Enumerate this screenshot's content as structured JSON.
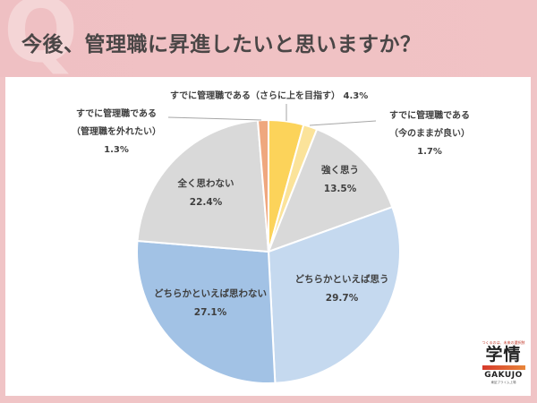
{
  "header": {
    "watermark": "Q",
    "title": "今後、管理職に昇進したいと思いますか？",
    "background_color": "#f0c4c6"
  },
  "chart_data": {
    "type": "pie",
    "title": "今後、管理職に昇進したいと思いますか？",
    "start_angle_deg": 0,
    "direction": "clockwise",
    "center": [
      300,
      281
    ],
    "radius": 147,
    "slices": [
      {
        "label": "すでに管理職である（さらに上を目指す）",
        "value": 4.3,
        "display": "4.3%",
        "color": "#fcd35a"
      },
      {
        "label": "すでに管理職である（今のままが良い）",
        "value": 1.7,
        "display": "1.7%",
        "color": "#fbe39a"
      },
      {
        "label": "強く思う",
        "value": 13.5,
        "display": "13.5%",
        "color": "#d9d9d9"
      },
      {
        "label": "どちらかといえば思う",
        "value": 29.7,
        "display": "29.7%",
        "color": "#c5d9ef"
      },
      {
        "label": "どちらかといえば思わない",
        "value": 27.1,
        "display": "27.1%",
        "color": "#a2c2e5"
      },
      {
        "label": "全く思わない",
        "value": 22.4,
        "display": "22.4%",
        "color": "#d9d9d9"
      },
      {
        "label": "すでに管理職である（管理職を外れたい）",
        "value": 1.3,
        "display": "1.3%",
        "color": "#efa77e"
      }
    ]
  },
  "labels": {
    "top_manager_up": {
      "line1": "すでに管理職である（さらに上を目指す） 4.3%"
    },
    "manager_stay": {
      "line1": "すでに管理職である",
      "line2": "（今のままが良い）",
      "line3": "1.7%"
    },
    "manager_leave": {
      "line1": "すでに管理職である",
      "line2": "（管理職を外れたい）",
      "line3": "1.3%"
    },
    "strongly_yes": {
      "line1": "強く思う",
      "line2": "13.5%"
    },
    "somewhat_yes": {
      "line1": "どちらかといえば思う",
      "line2": "29.7%"
    },
    "somewhat_no": {
      "line1": "どちらかといえば思わない",
      "line2": "27.1%"
    },
    "not_at_all": {
      "line1": "全く思わない",
      "line2": "22.4%"
    }
  },
  "logo": {
    "tagline": "つくるのは、未来の選択肢",
    "kanji": "学情",
    "english": "GAKUJO",
    "sub": "東証プライム上場"
  }
}
